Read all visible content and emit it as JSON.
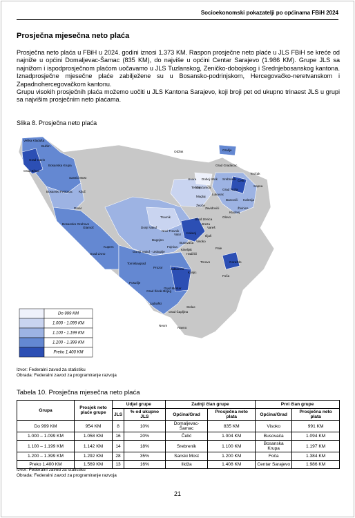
{
  "header": {
    "running_title": "Socioekonomski pokazatelji po općinama FBiH 2024"
  },
  "section_title": "Prosječna mjesečna neto plaća",
  "paragraphs": [
    "Prosječna neto plaća u FBiH u 2024. godini iznosi 1.373 KM. Raspon prosječne neto plaće u JLS FBiH se kreće od najniže u općini Domaljevac-Šamac (835 KM), do najviše u općini Centar Sarajevo (1.986 KM). Grupe JLS sa najnižom i ispodprosječnom plaćom uočavamo u JLS Tuzlanskog, Zeničko-dobojskog i Srednjebosanskog kantona. Iznadprosječne mjesečne plaće zabilježene su u Bosansko-podrinjskom, Hercegovačko-neretvanskom i Zapadnohercegovačkom kantonu.",
    "Grupu visokih prosječnih plaća možemo uočiti u JLS Kantona Sarajevo, koji broji pet od ukupno trinaest JLS u grupi sa najvišim prosječnim neto plaćama."
  ],
  "figure": {
    "caption": "Slika 8. Prosječna neto plaća",
    "map_labels": [
      "Velika Kladuša",
      "Bužim",
      "Grad Cazin",
      "Bosanska Krupa",
      "Grad Bihać",
      "Sanski Most",
      "Bosanski Petrovac",
      "Ključ",
      "Drvar",
      "Bosansko Grahovo",
      "Glamoč",
      "Grad Livno",
      "Kupres",
      "Tomislavgrad",
      "Posušje",
      "Grad Široki Brijeg",
      "Grad Mostar",
      "Grad Čapljina",
      "Neum",
      "Ravno",
      "Stolac",
      "Ljubuški",
      "Grad Gradačac",
      "Doboj Istok",
      "Gračanica",
      "Grad Tuzla",
      "Lukavac",
      "Kalesija",
      "Kladanj",
      "Zavidovići",
      "Žepče",
      "Tešanj",
      "Maglaj",
      "Grad Zenica",
      "Kakanj",
      "Vareš",
      "Travnik",
      "Bugojno",
      "Donji Vakuf",
      "Gornji Vakuf - Uskoplje",
      "Novi Travnik",
      "Vitez",
      "Busovača",
      "Fojnica",
      "Kiseljak",
      "Visoko",
      "Ilijaš",
      "Hadžići",
      "Trnovo",
      "Konjic",
      "Jablanica",
      "Prozor",
      "Čelić",
      "Sapna",
      "Teočak",
      "Banovići",
      "Živinice",
      "Srebrenik",
      "Olovo",
      "Goražde",
      "Foča",
      "Pale",
      "Usora",
      "Breza",
      "Odžak",
      "Orašje"
    ],
    "legend": [
      {
        "label": "Do 999 KM",
        "color": "#eef1fb"
      },
      {
        "label": "1.000 - 1.099 KM",
        "color": "#c9d4f0"
      },
      {
        "label": "1.100 - 1.199 KM",
        "color": "#9db3e3"
      },
      {
        "label": "1.200 - 1.399 KM",
        "color": "#6488d2"
      },
      {
        "label": "Preko 1.400 KM",
        "color": "#2c4fb4"
      }
    ],
    "sources": [
      "Izvor: Federalni zavod za statistiku",
      "Obrada: Federalni zavod za programiranje razvoja"
    ]
  },
  "table": {
    "caption": "Tabela 10. Prosječna mjesečna neto plaća",
    "header_top": [
      "Grupa",
      "Prosjek neto plaće grupe",
      "Udjel grupe",
      "Zadnji član grupe",
      "Prvi član grupe"
    ],
    "header_sub": [
      "JLS",
      "% od ukupno JLS",
      "Općina/Grad",
      "Prosječna neto plata",
      "Općina/Grad",
      "Prosječna neto plata"
    ],
    "rows": [
      [
        "Do 999 KM",
        "954 KM",
        "8",
        "10%",
        "Domaljevac-Šamac",
        "835 KM",
        "Visoko",
        "991 KM"
      ],
      [
        "1.000 – 1.099 KM",
        "1.058 KM",
        "16",
        "20%",
        "Čelić",
        "1.004 KM",
        "Busovača",
        "1.094 KM"
      ],
      [
        "1.100 – 1.199 KM",
        "1.142 KM",
        "14",
        "18%",
        "Srebrenik",
        "1.100 KM",
        "Bosanska Krupa",
        "1.197 KM"
      ],
      [
        "1.200 – 1.399 KM",
        "1.292 KM",
        "28",
        "35%",
        "Sanski Most",
        "1.200 KM",
        "Foča",
        "1.384 KM"
      ],
      [
        "Preko 1.400 KM",
        "1.569 KM",
        "13",
        "16%",
        "Ilidža",
        "1.408 KM",
        "Centar Sarajevo",
        "1.986 KM"
      ]
    ],
    "sources": [
      "Izvor: Federalni zavod za statistiku",
      "Obrada: Federalni zavod za programiranje razvoja"
    ]
  },
  "page_number": "21"
}
